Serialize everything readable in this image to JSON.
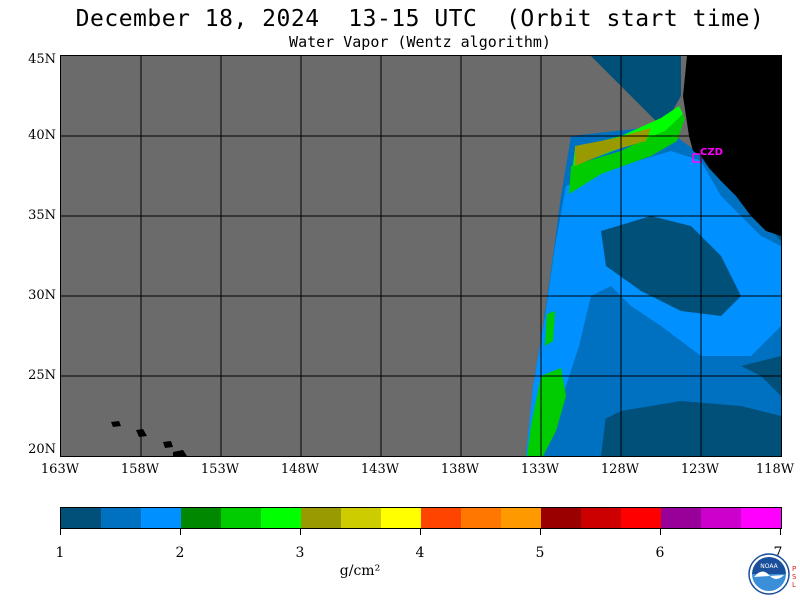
{
  "title": "December 18, 2024  13-15 UTC  (Orbit start time)",
  "subtitle": "Water Vapor (Wentz algorithm)",
  "map": {
    "lat_labels": [
      "45N",
      "40N",
      "35N",
      "30N",
      "25N",
      "20N"
    ],
    "lon_labels": [
      "163W",
      "158W",
      "153W",
      "148W",
      "143W",
      "138W",
      "133W",
      "128W",
      "123W",
      "118W"
    ],
    "lat_range": [
      20,
      45
    ],
    "lon_range": [
      -163,
      -118
    ],
    "station_label": "CZD",
    "colors": {
      "no_data": "#6b6b6b",
      "land": "#000000",
      "grid": "#000000"
    }
  },
  "colorbar": {
    "colors": [
      "#00507a",
      "#0070c0",
      "#0090ff",
      "#008800",
      "#00cc00",
      "#00ff00",
      "#999900",
      "#cccc00",
      "#ffff00",
      "#ff4400",
      "#ff7700",
      "#ff9900",
      "#990000",
      "#cc0000",
      "#ff0000",
      "#990099",
      "#cc00cc",
      "#ff00ff"
    ],
    "labels": [
      "1",
      "2",
      "3",
      "4",
      "5",
      "6",
      "7"
    ],
    "units": "g/cm²"
  },
  "logo": {
    "name": "NOAA",
    "lab": "PSL"
  }
}
